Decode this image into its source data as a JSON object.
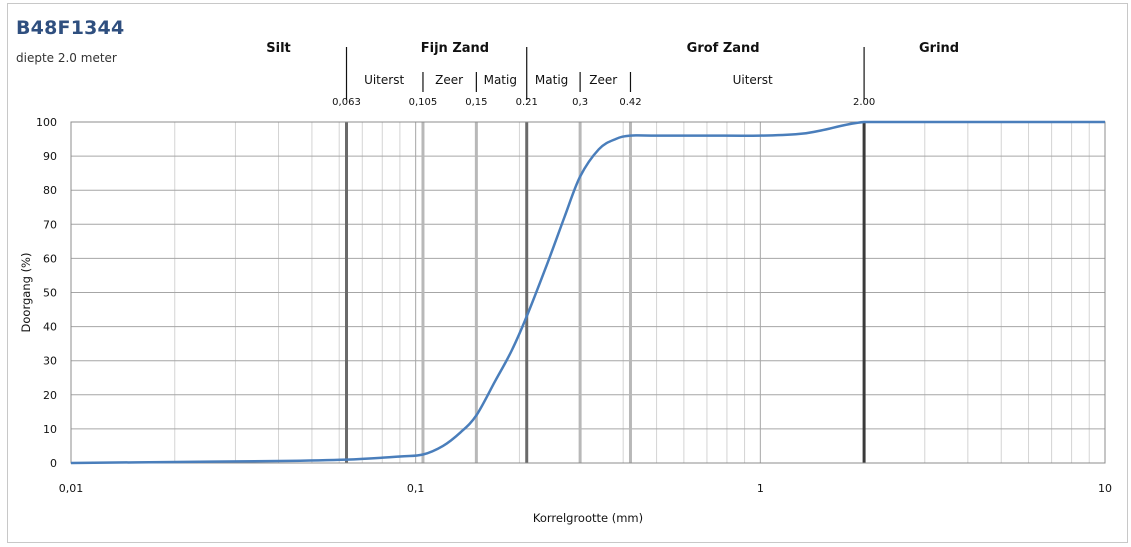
{
  "header": {
    "title": "B48F1344",
    "subtitle": "diepte 2.0 meter"
  },
  "zones": {
    "main": [
      {
        "label": "Silt",
        "pos": 0.04
      },
      {
        "label": "Fijn Zand",
        "pos": 0.13
      },
      {
        "label": "Grof Zand",
        "pos": 0.78
      },
      {
        "label": "Grind",
        "pos": 3.3
      }
    ],
    "sub": [
      {
        "label": "Uiterst",
        "pos": 0.081
      },
      {
        "label": "Zeer",
        "pos": 0.125
      },
      {
        "label": "Matig",
        "pos": 0.176
      },
      {
        "label": "Matig",
        "pos": 0.248
      },
      {
        "label": "Zeer",
        "pos": 0.35
      },
      {
        "label": "Uiterst",
        "pos": 0.95
      }
    ],
    "main_dividers": [
      0.063,
      0.21,
      2.0
    ],
    "sub_dividers": [
      0.105,
      0.15,
      0.3,
      0.42
    ],
    "boundaries": [
      {
        "label": "0,063",
        "value": 0.063
      },
      {
        "label": "0,105",
        "value": 0.105
      },
      {
        "label": "0,15",
        "value": 0.15
      },
      {
        "label": "0.21",
        "value": 0.21
      },
      {
        "label": "0,3",
        "value": 0.3
      },
      {
        "label": "0.42",
        "value": 0.42
      },
      {
        "label": "2.00",
        "value": 2.0
      }
    ]
  },
  "chart_data": {
    "type": "line",
    "xscale": "log",
    "xlim": [
      0.01,
      10
    ],
    "ylim": [
      0,
      100
    ],
    "grid": true,
    "xlabel": "Korrelgrootte (mm)",
    "ylabel": "Doorgang (%)",
    "x_ticks": [
      {
        "value": 0.01,
        "label": "0,01"
      },
      {
        "value": 0.1,
        "label": "0,1"
      },
      {
        "value": 1,
        "label": "1"
      },
      {
        "value": 10,
        "label": "10"
      }
    ],
    "y_ticks": [
      0,
      10,
      20,
      30,
      40,
      50,
      60,
      70,
      80,
      90,
      100
    ],
    "series": [
      {
        "color": "#4a7ebb",
        "x": [
          0.01,
          0.02,
          0.04,
          0.063,
          0.09,
          0.105,
          0.12,
          0.135,
          0.15,
          0.17,
          0.19,
          0.21,
          0.24,
          0.27,
          0.3,
          0.34,
          0.38,
          0.42,
          0.5,
          0.7,
          1.0,
          1.3,
          1.5,
          2.0,
          3.0,
          5.0,
          10.0
        ],
        "y": [
          0,
          0.3,
          0.6,
          1.0,
          1.9,
          2.5,
          5.0,
          9.0,
          14.0,
          24.0,
          33.0,
          43.0,
          58.0,
          72.0,
          84.0,
          92.0,
          95.0,
          96.0,
          96.0,
          96.0,
          96.0,
          96.5,
          97.5,
          100.0,
          100.0,
          100.0,
          100.0
        ]
      }
    ]
  }
}
